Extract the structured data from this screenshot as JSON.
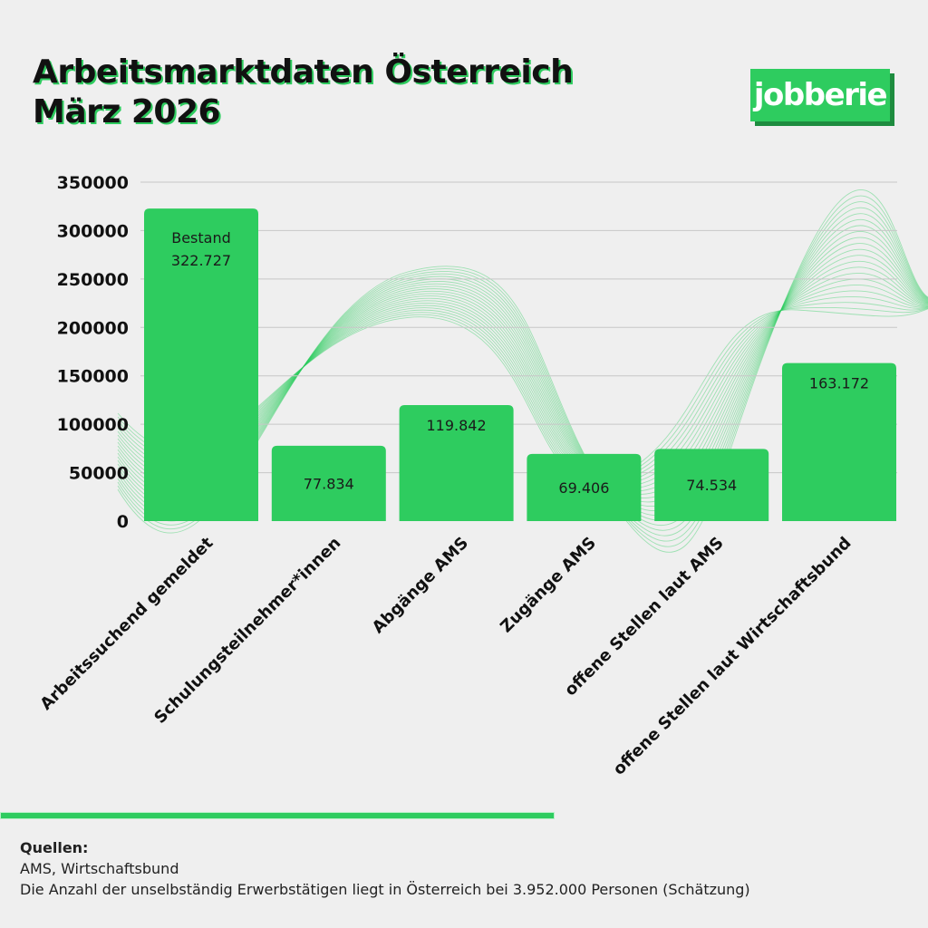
{
  "header": {
    "title_line1": "Arbeitsmarktdaten Österreich",
    "title_line2": "März 2026",
    "logo_text": "jobberie"
  },
  "colors": {
    "accent": "#2ecc5f",
    "background": "#efefef",
    "wave": "#2ecc5f",
    "text": "#111111"
  },
  "chart_data": {
    "type": "bar",
    "title": "Arbeitsmarktdaten Österreich März 2026",
    "xlabel": "",
    "ylabel": "",
    "ylim": [
      0,
      350000
    ],
    "yticks": [
      0,
      50000,
      100000,
      150000,
      200000,
      250000,
      300000,
      350000
    ],
    "ytick_labels": [
      "0",
      "50000",
      "100000",
      "150000",
      "200000",
      "250000",
      "300000",
      "350000"
    ],
    "grid": true,
    "categories": [
      "Arbeitssuchend gemeldet",
      "Schulungsteilnehmer*innen",
      "Abgänge AMS",
      "Zugänge AMS",
      "offene Stellen laut AMS",
      "offene Stellen laut Wirtschaftsbund"
    ],
    "values": [
      322727,
      77834,
      119842,
      69406,
      74534,
      163172
    ],
    "data_labels": [
      "322.727",
      "77.834",
      "119.842",
      "69.406",
      "74.534",
      "163.172"
    ],
    "bar_annotations": [
      "Bestand",
      "",
      "",
      "",
      "",
      ""
    ]
  },
  "footer": {
    "sources_heading": "Quellen:",
    "sources_line": "AMS, Wirtschaftsbund",
    "note": "Die Anzahl der unselbständig Erwerbstätigen liegt in Österreich bei 3.952.000 Personen (Schätzung)"
  }
}
